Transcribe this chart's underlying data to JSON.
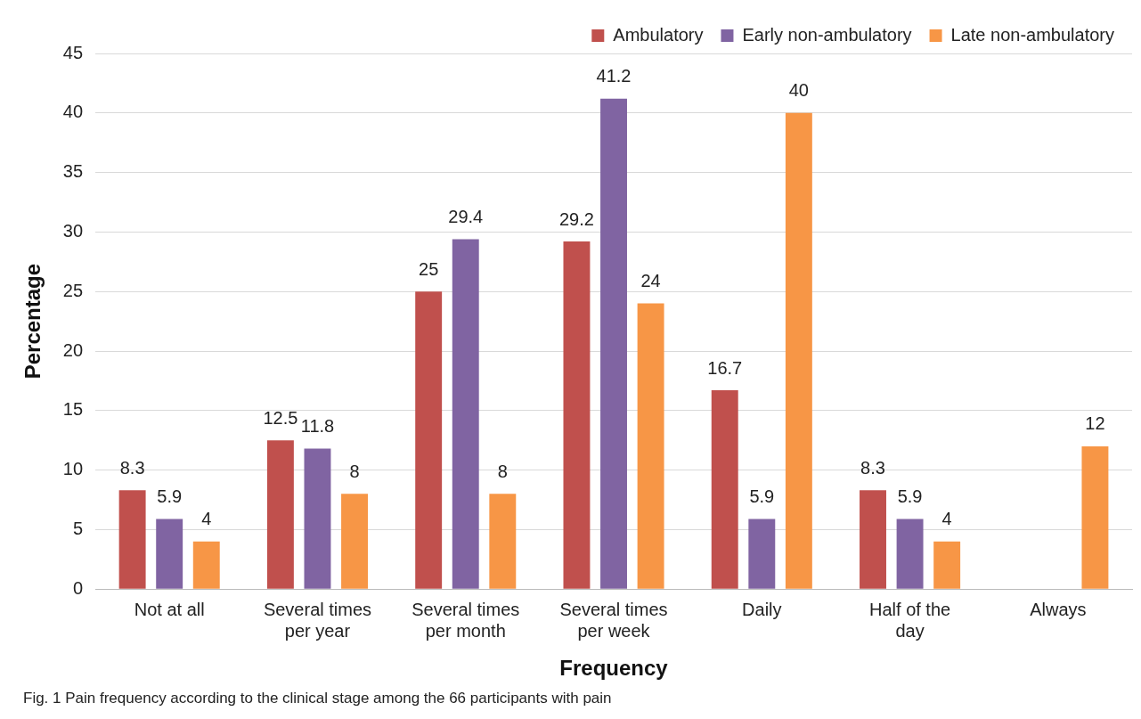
{
  "chart_data": {
    "type": "bar",
    "xlabel": "Frequency",
    "ylabel": "Percentage",
    "categories": [
      "Not at all",
      "Several times per year",
      "Several times per month",
      "Several times per week",
      "Daily",
      "Half of the day",
      "Always"
    ],
    "series": [
      {
        "name": "Ambulatory",
        "color": "#c0504d",
        "values": [
          8.3,
          12.5,
          25,
          29.2,
          16.7,
          8.3,
          null
        ]
      },
      {
        "name": "Early non-ambulatory",
        "color": "#8064a2",
        "values": [
          5.9,
          11.8,
          29.4,
          41.2,
          5.9,
          5.9,
          null
        ]
      },
      {
        "name": "Late non-ambulatory",
        "color": "#f79646",
        "values": [
          4,
          8,
          8,
          24,
          40,
          4,
          12
        ]
      }
    ],
    "ylim": [
      0,
      45
    ],
    "yticks": [
      0,
      5,
      10,
      15,
      20,
      25,
      30,
      35,
      40,
      45
    ],
    "grid": "y",
    "legend": "top right",
    "data_labels": true,
    "annotations": [
      "Fig. 1  Pain frequency according to the clinical stage among the 66 participants with pain"
    ]
  }
}
